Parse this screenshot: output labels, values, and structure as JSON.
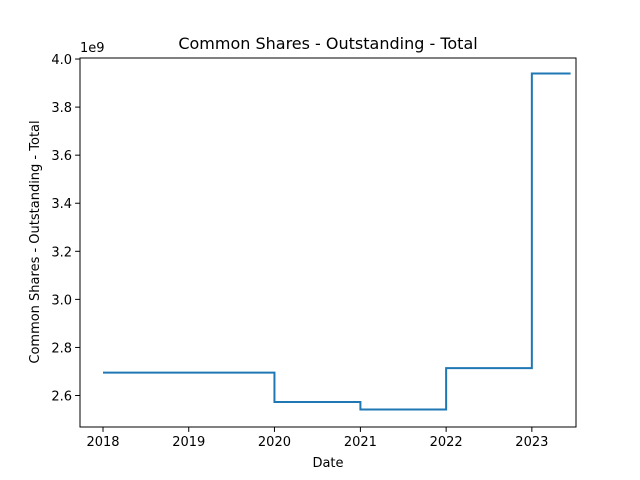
{
  "chart_data": {
    "type": "line",
    "step": "post",
    "title": "Common Shares - Outstanding - Total",
    "xlabel": "Date",
    "ylabel": "Common Shares - Outstanding - Total",
    "y_offset_text": "1e9",
    "xlim": [
      "2017-09-25",
      "2023-07-08"
    ],
    "ylim": [
      2.469,
      4.0043
    ],
    "x_ticks": [
      "2018",
      "2019",
      "2020",
      "2021",
      "2022",
      "2023"
    ],
    "y_ticks": [
      "2.6",
      "2.8",
      "3.0",
      "3.2",
      "3.4",
      "3.6",
      "3.8",
      "4.0"
    ],
    "grid": false,
    "color": "#1f77b4",
    "series": [
      {
        "x": [
          "2018-01-01",
          "2020-01-01",
          "2021-01-01",
          "2022-01-01",
          "2023-01-01",
          "2023-06-15"
        ],
        "y": [
          2.695,
          2.573,
          2.542,
          2.714,
          3.94,
          3.94
        ]
      }
    ]
  }
}
